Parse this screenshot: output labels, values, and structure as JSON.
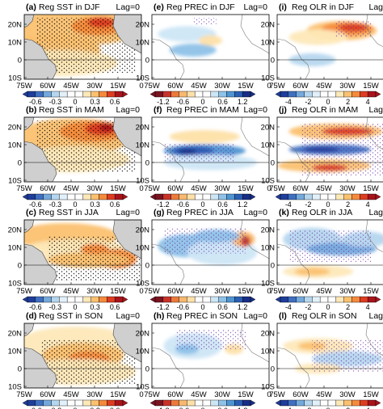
{
  "figure": {
    "lag_label": "Lag=0",
    "lon_ticks": [
      "75W",
      "60W",
      "45W",
      "30W",
      "15W",
      "0"
    ],
    "lat_ticks": [
      "20N",
      "10N",
      "0",
      "10S"
    ],
    "columns": [
      {
        "variable": "SST",
        "colorbar_ticks": [
          "-0.6",
          "-0.3",
          "0",
          "0.3",
          "0.6"
        ],
        "colorbar_colors": [
          "#1f3d9a",
          "#3f6fc0",
          "#74a9dc",
          "#b5d6ee",
          "#e2f0fa",
          "#ffffff",
          "#ffffff",
          "#fde8b8",
          "#fbc170",
          "#f58a3c",
          "#dd3d22",
          "#a8141c"
        ]
      },
      {
        "variable": "PREC",
        "colorbar_ticks": [
          "-1.2",
          "-0.6",
          "0",
          "0.6",
          "1.2"
        ],
        "colorbar_colors": [
          "#7a1420",
          "#c8322a",
          "#ec7a3c",
          "#f8b870",
          "#fde0a8",
          "#ffffff",
          "#ffffff",
          "#cde6f6",
          "#8ec2e8",
          "#4f95d2",
          "#2a5fb4",
          "#182e86"
        ]
      },
      {
        "variable": "OLR",
        "colorbar_ticks": [
          "-4",
          "-2",
          "0",
          "2",
          "4"
        ],
        "colorbar_colors": [
          "#1f3d9a",
          "#3f6fc0",
          "#74a9dc",
          "#b5d6ee",
          "#e2f0fa",
          "#ffffff",
          "#ffffff",
          "#fde8b8",
          "#fbc170",
          "#f58a3c",
          "#dd3d22",
          "#a8141c"
        ]
      }
    ],
    "panels": [
      {
        "label": "(a)",
        "title": "Reg SST in DJF"
      },
      {
        "label": "(e)",
        "title": "Reg PREC in DJF"
      },
      {
        "label": "(i)",
        "title": "Reg OLR in DJF"
      },
      {
        "label": "(b)",
        "title": "Reg SST in MAM"
      },
      {
        "label": "(f)",
        "title": "Reg PREC in MAM"
      },
      {
        "label": "(j)",
        "title": "Reg OLR in MAM"
      },
      {
        "label": "(c)",
        "title": "Reg SST in JJA"
      },
      {
        "label": "(g)",
        "title": "Reg PREC in JJA"
      },
      {
        "label": "(k)",
        "title": "Reg OLR in JJA"
      },
      {
        "label": "(d)",
        "title": "Reg SST in SON"
      },
      {
        "label": "(h)",
        "title": "Reg PREC in SON"
      },
      {
        "label": "(l)",
        "title": "Reg OLR in SON"
      }
    ]
  }
}
